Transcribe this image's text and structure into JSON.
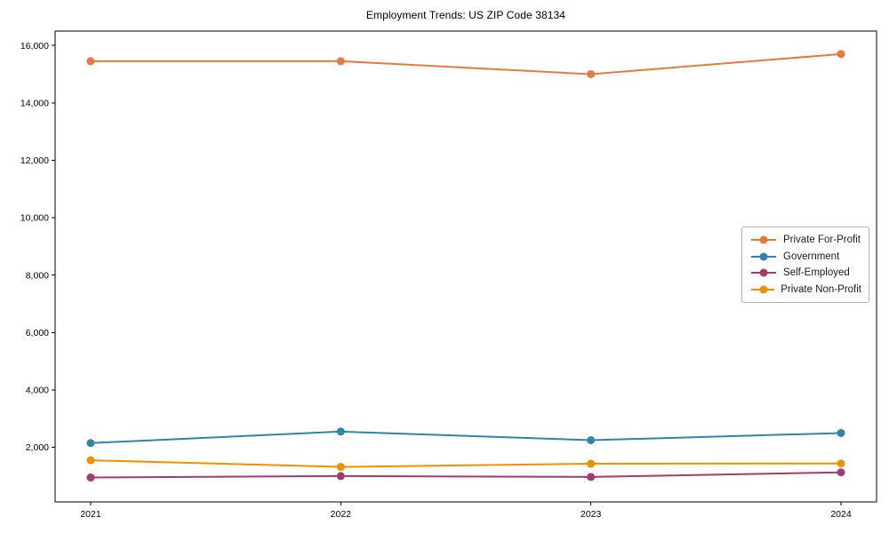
{
  "chart_data": {
    "type": "line",
    "title": "Employment Trends: US ZIP Code 38134",
    "categories": [
      "2021",
      "2022",
      "2023",
      "2024"
    ],
    "series": [
      {
        "name": "Private For-Profit",
        "color": "#E8793D",
        "values": [
          15450,
          15450,
          15000,
          15700
        ]
      },
      {
        "name": "Government",
        "color": "#2E86AB",
        "values": [
          2150,
          2550,
          2250,
          2500
        ]
      },
      {
        "name": "Self-Employed",
        "color": "#A23B72",
        "values": [
          950,
          1000,
          970,
          1130
        ]
      },
      {
        "name": "Private Non-Profit",
        "color": "#F18F01",
        "values": [
          1550,
          1320,
          1430,
          1440
        ]
      }
    ],
    "xlabel": "",
    "ylabel": "",
    "ylim": [
      100,
      16500
    ],
    "yticks": [
      2000,
      4000,
      6000,
      8000,
      10000,
      12000,
      14000,
      16000
    ],
    "ytick_labels": [
      "2,000",
      "4,000",
      "6,000",
      "8,000",
      "10,000",
      "12,000",
      "14,000",
      "16,000"
    ],
    "grid": false,
    "legend_position": "center-right",
    "marker": "circle",
    "axis_color": "#000000",
    "background_color": "#ffffff"
  }
}
